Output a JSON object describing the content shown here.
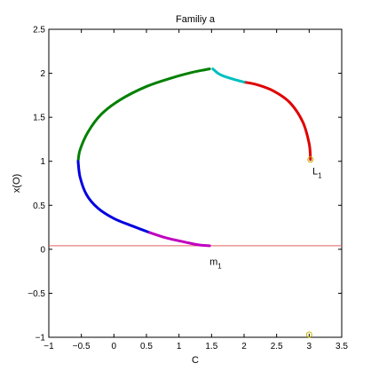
{
  "chart_data": {
    "type": "line",
    "title": "Familiy a",
    "xlabel": "C",
    "ylabel": "x(O)",
    "xlim": [
      -1,
      3.5
    ],
    "ylim": [
      -1,
      2.5
    ],
    "xticks": [
      -1,
      -0.5,
      0,
      0.5,
      1,
      1.5,
      2,
      2.5,
      3,
      3.5
    ],
    "yticks": [
      -1,
      -0.5,
      0,
      0.5,
      1,
      1.5,
      2,
      2.5
    ],
    "xtick_labels": [
      "−1",
      "−0.5",
      "0",
      "0.5",
      "1",
      "1.5",
      "2",
      "2.5",
      "3",
      "3.5"
    ],
    "ytick_labels": [
      "−1",
      "−0.5",
      "0",
      "0.5",
      "1",
      "1.5",
      "2",
      "2.5"
    ],
    "grid": false,
    "series": [
      {
        "color": "#e00000",
        "points": [
          [
            3.02,
            1.02
          ],
          [
            3.0,
            1.2
          ],
          [
            2.9,
            1.45
          ],
          [
            2.7,
            1.67
          ],
          [
            2.45,
            1.8
          ],
          [
            2.2,
            1.87
          ],
          [
            2.0,
            1.9
          ]
        ]
      },
      {
        "color": "#00c0c0",
        "points": [
          [
            2.0,
            1.9
          ],
          [
            1.85,
            1.93
          ],
          [
            1.68,
            1.97
          ],
          [
            1.6,
            2.0
          ],
          [
            1.52,
            2.05
          ]
        ]
      },
      {
        "color": "#008000",
        "points": [
          [
            1.47,
            2.05
          ],
          [
            1.4,
            2.04
          ],
          [
            1.2,
            2.01
          ],
          [
            0.9,
            1.95
          ],
          [
            0.5,
            1.85
          ],
          [
            0.1,
            1.7
          ],
          [
            -0.2,
            1.53
          ],
          [
            -0.4,
            1.33
          ],
          [
            -0.52,
            1.13
          ],
          [
            -0.55,
            1.0
          ]
        ]
      },
      {
        "color": "#0000e0",
        "points": [
          [
            -0.55,
            1.0
          ],
          [
            -0.52,
            0.82
          ],
          [
            -0.42,
            0.62
          ],
          [
            -0.25,
            0.47
          ],
          [
            0.0,
            0.35
          ],
          [
            0.3,
            0.26
          ],
          [
            0.55,
            0.19
          ]
        ]
      },
      {
        "color": "#c000c0",
        "points": [
          [
            0.55,
            0.19
          ],
          [
            0.8,
            0.13
          ],
          [
            1.1,
            0.08
          ],
          [
            1.3,
            0.05
          ],
          [
            1.47,
            0.04
          ]
        ]
      }
    ],
    "reference_line": {
      "y": 0.04,
      "color": "#e06060"
    },
    "markers": [
      {
        "x": 3.02,
        "y": 1.02,
        "color": "#c8b400"
      },
      {
        "x": 3.0,
        "y": -0.97,
        "color": "#c8b400"
      }
    ],
    "annotations": [
      {
        "text": "L",
        "sub": "1",
        "x": 3.05,
        "y": 0.85
      },
      {
        "text": "m",
        "sub": "1",
        "x": 1.47,
        "y": -0.18
      }
    ]
  }
}
